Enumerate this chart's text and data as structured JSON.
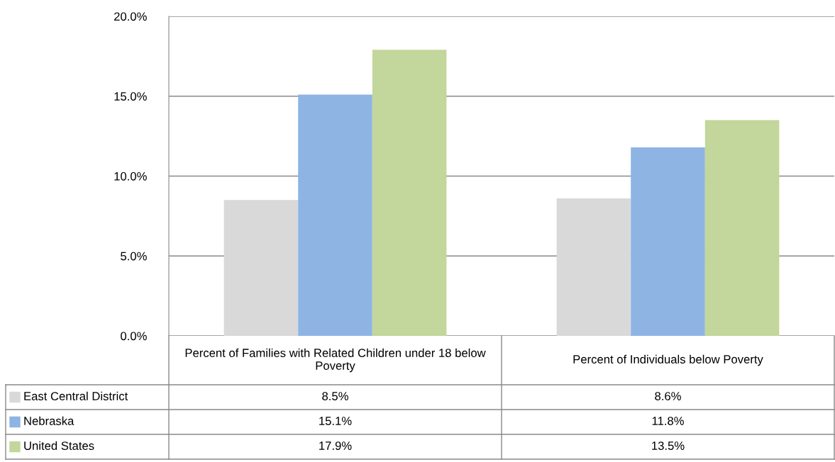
{
  "chart_data": {
    "type": "bar",
    "categories": [
      "Percent of Families with Related Children under 18 below Poverty",
      "Percent of Individuals below Poverty"
    ],
    "series": [
      {
        "name": "East Central District",
        "color": "#d9d9d9",
        "values": [
          8.5,
          8.6
        ],
        "value_labels": [
          "8.5%",
          "8.6%"
        ]
      },
      {
        "name": "Nebraska",
        "color": "#8eb4e3",
        "values": [
          15.1,
          11.8
        ],
        "value_labels": [
          "15.1%",
          "11.8%"
        ]
      },
      {
        "name": "United States",
        "color": "#c3d69b",
        "values": [
          17.9,
          13.5
        ],
        "value_labels": [
          "17.9%",
          "13.5%"
        ]
      }
    ],
    "ylim": [
      0,
      20
    ],
    "yticks": [
      {
        "value": 0,
        "label": "0.0%"
      },
      {
        "value": 5,
        "label": "5.0%"
      },
      {
        "value": 10,
        "label": "10.0%"
      },
      {
        "value": 15,
        "label": "15.0%"
      },
      {
        "value": 20,
        "label": "20.0%"
      }
    ],
    "grid": "y",
    "legend": "bottom"
  }
}
